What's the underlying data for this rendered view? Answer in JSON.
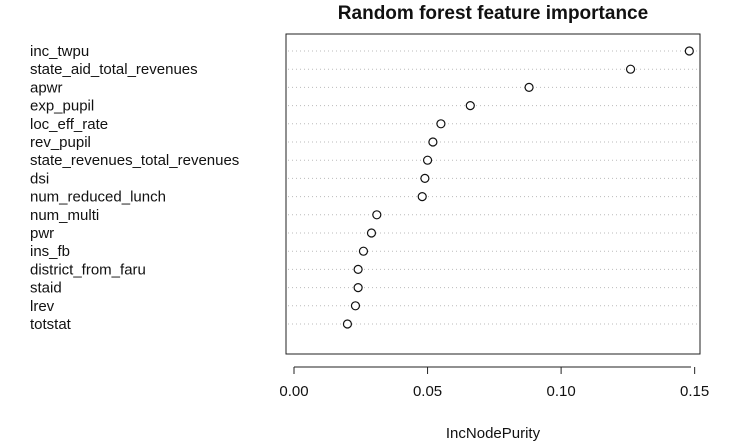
{
  "chart_data": {
    "type": "scatter",
    "title": "Random forest feature importance",
    "xlabel": "IncNodePurity",
    "ylabel": "",
    "xlim": [
      -0.003,
      0.152
    ],
    "xticks": [
      0.0,
      0.05,
      0.1,
      0.15
    ],
    "xtick_labels": [
      "0.00",
      "0.05",
      "0.10",
      "0.15"
    ],
    "grid": "dotted horizontal",
    "features": [
      {
        "name": "inc_twpu",
        "value": 0.148
      },
      {
        "name": "state_aid_total_revenues",
        "value": 0.126
      },
      {
        "name": "apwr",
        "value": 0.088
      },
      {
        "name": "exp_pupil",
        "value": 0.066
      },
      {
        "name": "loc_eff_rate",
        "value": 0.055
      },
      {
        "name": "rev_pupil",
        "value": 0.052
      },
      {
        "name": "state_revenues_total_revenues",
        "value": 0.05
      },
      {
        "name": "dsi",
        "value": 0.049
      },
      {
        "name": "num_reduced_lunch",
        "value": 0.048
      },
      {
        "name": "num_multi",
        "value": 0.031
      },
      {
        "name": "pwr",
        "value": 0.029
      },
      {
        "name": "ins_fb",
        "value": 0.026
      },
      {
        "name": "district_from_faru",
        "value": 0.024
      },
      {
        "name": "staid",
        "value": 0.024
      },
      {
        "name": "lrev",
        "value": 0.023
      },
      {
        "name": "totstat",
        "value": 0.02
      }
    ]
  }
}
